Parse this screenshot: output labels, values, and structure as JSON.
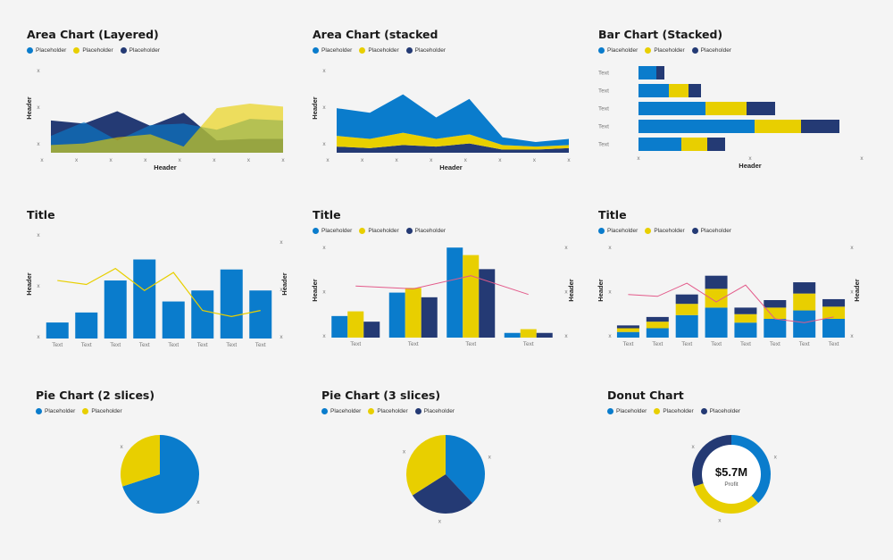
{
  "colors": {
    "blue": "#0a7ccc",
    "yellow": "#e8cf00",
    "navy": "#243a74",
    "pink": "#e35a8a",
    "gridText": "#777777"
  },
  "chart_data": [
    {
      "id": "c1",
      "type": "area",
      "mode": "layered",
      "title": "Area Chart (Layered)",
      "legend": [
        "Placeholder",
        "Placeholder",
        "Placeholder"
      ],
      "xlabel": "Header",
      "ylabel": "Header",
      "x_ticks": [
        "x",
        "x",
        "x",
        "x",
        "x",
        "x",
        "x",
        "x"
      ],
      "y_ticks": [
        "x",
        "x",
        "x"
      ],
      "ylim": [
        0,
        100
      ],
      "series": [
        {
          "color": "navy",
          "values": [
            42,
            38,
            54,
            35,
            52,
            16,
            18,
            18
          ]
        },
        {
          "color": "blue",
          "values": [
            22,
            40,
            16,
            36,
            38,
            30,
            44,
            42
          ]
        },
        {
          "color": "yellow",
          "values": [
            10,
            12,
            20,
            24,
            8,
            58,
            64,
            60
          ]
        }
      ]
    },
    {
      "id": "c2",
      "type": "area",
      "mode": "stacked",
      "title": "Area Chart (stacked",
      "legend": [
        "Placeholder",
        "Placeholder",
        "Placeholder"
      ],
      "xlabel": "Header",
      "ylabel": "Header",
      "x_ticks": [
        "x",
        "x",
        "x",
        "x",
        "x",
        "x",
        "x",
        "x"
      ],
      "y_ticks": [
        "x",
        "x",
        "x"
      ],
      "ylim": [
        0,
        100
      ],
      "series": [
        {
          "color": "navy",
          "values": [
            8,
            6,
            10,
            8,
            12,
            4,
            4,
            6
          ]
        },
        {
          "color": "yellow",
          "values": [
            14,
            12,
            16,
            10,
            12,
            6,
            4,
            4
          ]
        },
        {
          "color": "blue",
          "values": [
            36,
            34,
            50,
            28,
            46,
            10,
            6,
            8
          ]
        }
      ]
    },
    {
      "id": "c3",
      "type": "bar",
      "mode": "horizontal-stacked",
      "title": "Bar Chart (Stacked)",
      "legend": [
        "Placeholder",
        "Placeholder",
        "Placeholder"
      ],
      "xlabel": "Header",
      "categories": [
        "Text",
        "Text",
        "Text",
        "Text",
        "Text"
      ],
      "x_ticks": [
        "x",
        "x",
        "x"
      ],
      "xlim": [
        0,
        250
      ],
      "series": [
        {
          "color": "blue",
          "values": [
            20,
            34,
            75,
            130,
            48
          ]
        },
        {
          "color": "yellow",
          "values": [
            0,
            22,
            46,
            52,
            29
          ]
        },
        {
          "color": "navy",
          "values": [
            9,
            14,
            32,
            43,
            20
          ]
        }
      ]
    },
    {
      "id": "c4",
      "type": "bar",
      "mode": "bar-line",
      "title": "Title",
      "legend": [],
      "ylabel": "Header",
      "y2label": "Header",
      "categories": [
        "Text",
        "Text",
        "Text",
        "Text",
        "Text",
        "Text",
        "Text",
        "Text"
      ],
      "y_ticks": [
        "x",
        "x",
        "x"
      ],
      "y2_ticks": [
        "x",
        "x",
        "x"
      ],
      "ylim": [
        0,
        100
      ],
      "bars": {
        "color": "blue",
        "values": [
          16,
          26,
          58,
          79,
          37,
          48,
          69,
          48
        ]
      },
      "line": {
        "color": "yellow",
        "values": [
          58,
          54,
          70,
          48,
          66,
          28,
          22,
          28
        ]
      }
    },
    {
      "id": "c5",
      "type": "bar",
      "mode": "grouped-line",
      "title": "Title",
      "legend": [
        "Placeholder",
        "Placeholder",
        "Placeholder"
      ],
      "ylabel": "Header",
      "y2label": "Header",
      "categories": [
        "Text",
        "Text",
        "Text",
        "Text"
      ],
      "y_ticks": [
        "x",
        "x",
        "x"
      ],
      "y2_ticks": [
        "x",
        "x",
        "x"
      ],
      "ylim": [
        0,
        100
      ],
      "series": [
        {
          "color": "blue",
          "values": [
            23,
            48,
            96,
            5
          ]
        },
        {
          "color": "yellow",
          "values": [
            28,
            53,
            88,
            9
          ]
        },
        {
          "color": "navy",
          "values": [
            17,
            43,
            73,
            5
          ]
        }
      ],
      "line": {
        "color": "pink",
        "values": [
          55,
          52,
          66,
          46
        ]
      }
    },
    {
      "id": "c6",
      "type": "bar",
      "mode": "stacked-line",
      "title": "Title",
      "legend": [
        "Placeholder",
        "Placeholder",
        "Placeholder"
      ],
      "ylabel": "Header",
      "y2label": "Header",
      "categories": [
        "Text",
        "Text",
        "Text",
        "Text",
        "Text",
        "Text",
        "Text",
        "Text"
      ],
      "y_ticks": [
        "x",
        "x",
        "x"
      ],
      "y2_ticks": [
        "x",
        "x",
        "x"
      ],
      "ylim": [
        0,
        100
      ],
      "series": [
        {
          "color": "blue",
          "values": [
            6,
            10,
            24,
            32,
            16,
            20,
            29,
            20
          ]
        },
        {
          "color": "yellow",
          "values": [
            4,
            7,
            12,
            20,
            9,
            12,
            18,
            13
          ]
        },
        {
          "color": "navy",
          "values": [
            3,
            5,
            10,
            14,
            7,
            8,
            12,
            8
          ]
        }
      ],
      "line": {
        "color": "pink",
        "values": [
          46,
          44,
          58,
          38,
          56,
          20,
          16,
          22
        ]
      }
    },
    {
      "id": "c7",
      "type": "pie",
      "title": "Pie Chart (2 slices)",
      "legend": [
        "Placeholder",
        "Placeholder"
      ],
      "slices": [
        {
          "color": "blue",
          "value": 70,
          "label": "x"
        },
        {
          "color": "yellow",
          "value": 30,
          "label": "x"
        }
      ]
    },
    {
      "id": "c8",
      "type": "pie",
      "title": "Pie Chart (3 slices)",
      "legend": [
        "Placeholder",
        "Placeholder",
        "Placeholder"
      ],
      "slices": [
        {
          "color": "blue",
          "value": 38,
          "label": "x"
        },
        {
          "color": "navy",
          "value": 28,
          "label": "x"
        },
        {
          "color": "yellow",
          "value": 34,
          "label": "x"
        }
      ]
    },
    {
      "id": "c9",
      "type": "donut",
      "title": "Donut Chart",
      "legend": [
        "Placeholder",
        "Placeholder",
        "Placeholder"
      ],
      "center_value": "$5.7M",
      "center_label": "Profit",
      "slices": [
        {
          "color": "blue",
          "value": 38,
          "label": "x"
        },
        {
          "color": "yellow",
          "value": 32,
          "label": "x"
        },
        {
          "color": "navy",
          "value": 30,
          "label": "x"
        }
      ]
    }
  ]
}
